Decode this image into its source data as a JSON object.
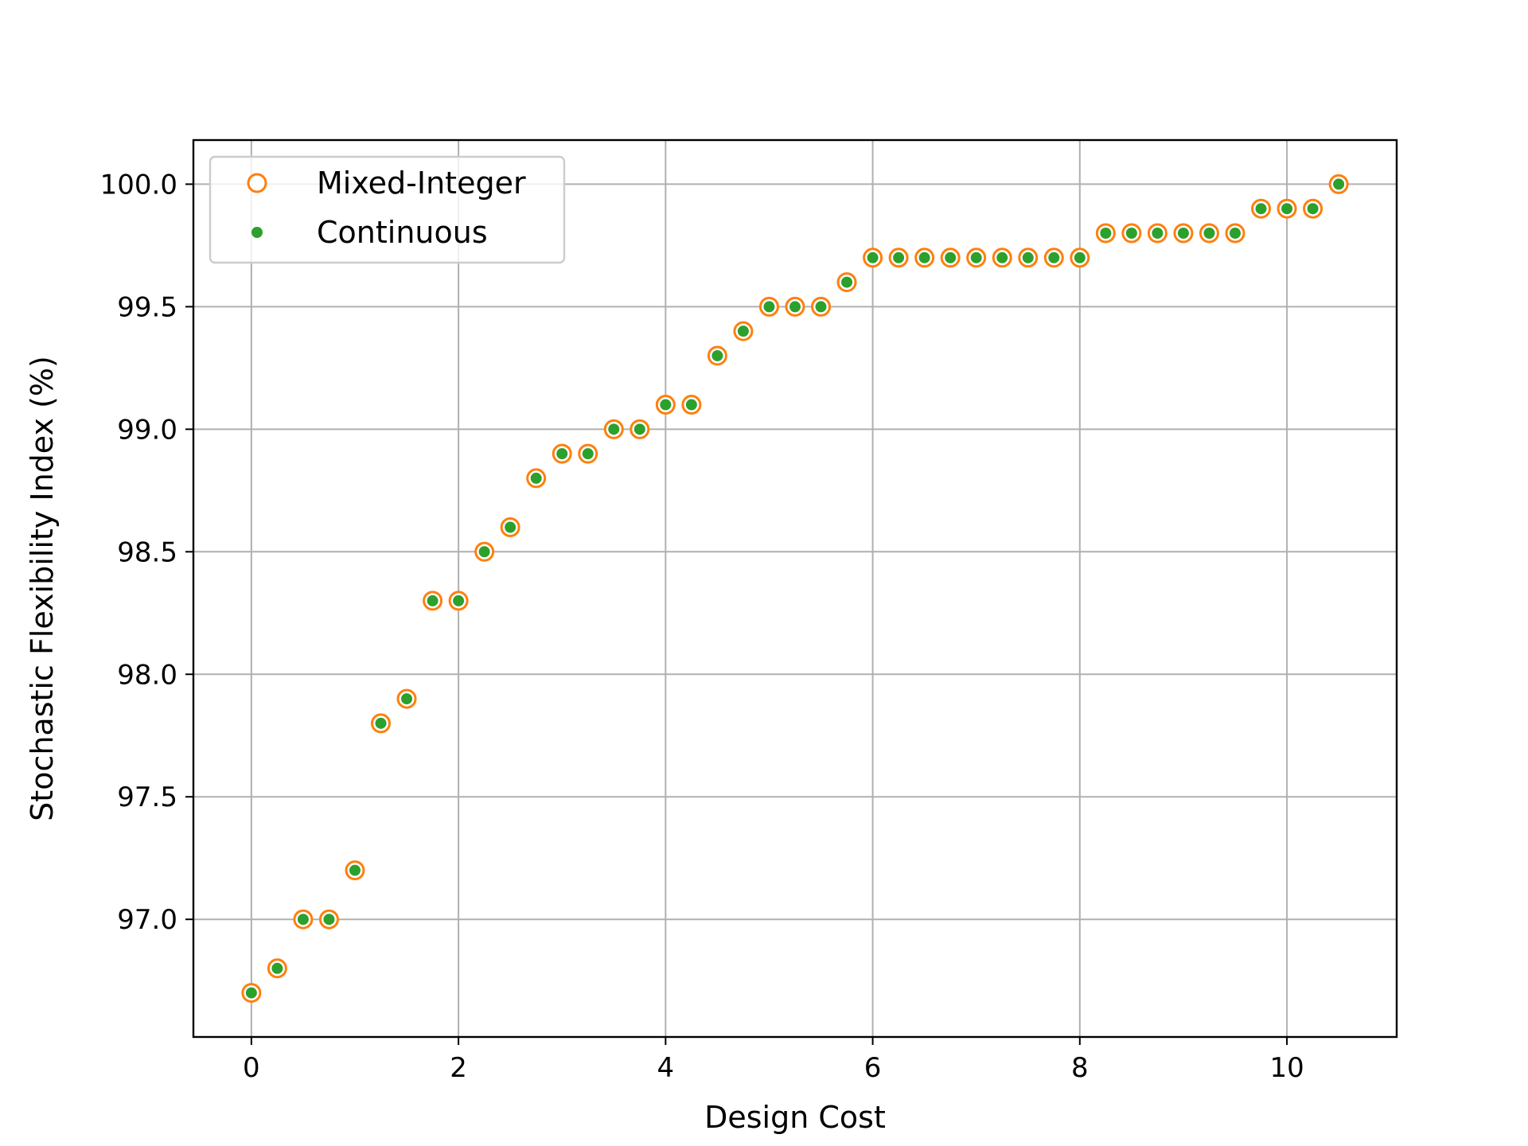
{
  "chart_data": {
    "type": "scatter",
    "title": "",
    "xlabel": "Design Cost",
    "ylabel": "Stochastic Flexibility Index (%)",
    "xlim": [
      -0.56,
      11.06
    ],
    "ylim": [
      96.52,
      100.18
    ],
    "xticks": [
      0,
      2,
      4,
      6,
      8,
      10
    ],
    "yticks": [
      97.0,
      97.5,
      98.0,
      98.5,
      99.0,
      99.5,
      100.0
    ],
    "xtick_labels": [
      "0",
      "2",
      "4",
      "6",
      "8",
      "10"
    ],
    "ytick_labels": [
      "97.0",
      "97.5",
      "98.0",
      "98.5",
      "99.0",
      "99.5",
      "100.0"
    ],
    "grid": true,
    "legend_position": "upper-left",
    "colors": {
      "mixed_integer": "#ff7f0e",
      "continuous": "#2ca02c"
    },
    "x": [
      0,
      0.25,
      0.5,
      0.75,
      1.0,
      1.25,
      1.5,
      1.75,
      2.0,
      2.25,
      2.5,
      2.75,
      3.0,
      3.25,
      3.5,
      3.75,
      4.0,
      4.25,
      4.5,
      4.75,
      5.0,
      5.25,
      5.5,
      5.75,
      6.0,
      6.25,
      6.5,
      6.75,
      7.0,
      7.25,
      7.5,
      7.75,
      8.0,
      8.25,
      8.5,
      8.75,
      9.0,
      9.25,
      9.5,
      9.75,
      10.0,
      10.25,
      10.5
    ],
    "series": [
      {
        "name": "Mixed-Integer",
        "marker": "hollow-circle",
        "values": [
          96.7,
          96.8,
          97.0,
          97.0,
          97.2,
          97.8,
          97.9,
          98.3,
          98.3,
          98.5,
          98.6,
          98.8,
          98.9,
          98.9,
          99.0,
          99.0,
          99.1,
          99.1,
          99.3,
          99.4,
          99.5,
          99.5,
          99.5,
          99.6,
          99.7,
          99.7,
          99.7,
          99.7,
          99.7,
          99.7,
          99.7,
          99.7,
          99.7,
          99.8,
          99.8,
          99.8,
          99.8,
          99.8,
          99.8,
          99.9,
          99.9,
          99.9,
          100.0
        ]
      },
      {
        "name": "Continuous",
        "marker": "filled-dot",
        "values": [
          96.7,
          96.8,
          97.0,
          97.0,
          97.2,
          97.8,
          97.9,
          98.3,
          98.3,
          98.5,
          98.6,
          98.8,
          98.9,
          98.9,
          99.0,
          99.0,
          99.1,
          99.1,
          99.3,
          99.4,
          99.5,
          99.5,
          99.5,
          99.6,
          99.7,
          99.7,
          99.7,
          99.7,
          99.7,
          99.7,
          99.7,
          99.7,
          99.7,
          99.8,
          99.8,
          99.8,
          99.8,
          99.8,
          99.8,
          99.9,
          99.9,
          99.9,
          100.0
        ]
      }
    ]
  }
}
